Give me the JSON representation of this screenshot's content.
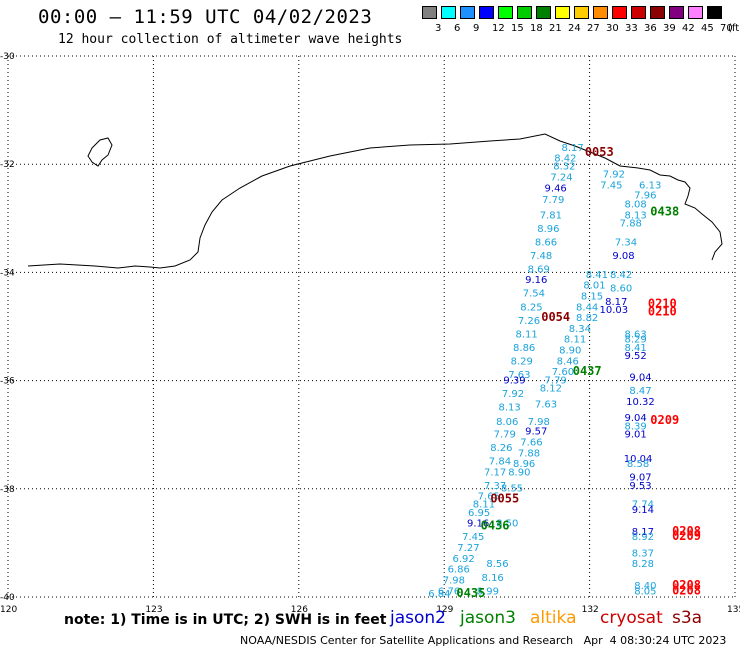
{
  "title": "00:00 – 11:59 UTC 04/02/2023",
  "subtitle": "12 hour collection of altimeter wave heights",
  "legend": {
    "unit": "(ft)",
    "colors": [
      "#808080",
      "#00ffff",
      "#1e90ff",
      "#0000ff",
      "#00ff00",
      "#00cc00",
      "#008000",
      "#ffff00",
      "#ffcc00",
      "#ff8c00",
      "#ff0000",
      "#cc0000",
      "#8b0000",
      "#800080",
      "#ff80ff",
      "#000000"
    ],
    "labels": [
      "3",
      "6",
      "9",
      "12",
      "15",
      "18",
      "21",
      "24",
      "27",
      "30",
      "33",
      "36",
      "39",
      "42",
      "45",
      "70"
    ]
  },
  "axes": {
    "y_labels": [
      "-30",
      "-32",
      "-34",
      "-36",
      "-38",
      "-40"
    ],
    "x_labels": [
      "120",
      "123",
      "126",
      "129",
      "132",
      "135"
    ]
  },
  "swh_color_map": {
    "cyan": "#1aa3dc",
    "blue": "#0000cc"
  },
  "observations": [
    {
      "v": "8.17",
      "c": "cyan",
      "lon": 131.65,
      "lat": -31.76
    },
    {
      "v": "8.42",
      "c": "cyan",
      "lon": 131.5,
      "lat": -31.95
    },
    {
      "v": "8.32",
      "c": "cyan",
      "lon": 131.48,
      "lat": -32.1
    },
    {
      "v": "7.24",
      "c": "cyan",
      "lon": 131.42,
      "lat": -32.3
    },
    {
      "v": "9.46",
      "c": "blue",
      "lon": 131.3,
      "lat": -32.5
    },
    {
      "v": "7.79",
      "c": "cyan",
      "lon": 131.25,
      "lat": -32.72
    },
    {
      "v": "7.81",
      "c": "cyan",
      "lon": 131.2,
      "lat": -33.0
    },
    {
      "v": "8.96",
      "c": "cyan",
      "lon": 131.15,
      "lat": -33.25
    },
    {
      "v": "8.66",
      "c": "cyan",
      "lon": 131.1,
      "lat": -33.5
    },
    {
      "v": "7.48",
      "c": "cyan",
      "lon": 131.0,
      "lat": -33.75
    },
    {
      "v": "8.69",
      "c": "cyan",
      "lon": 130.95,
      "lat": -34.0
    },
    {
      "v": "9.16",
      "c": "blue",
      "lon": 130.9,
      "lat": -34.2
    },
    {
      "v": "7.54",
      "c": "cyan",
      "lon": 130.85,
      "lat": -34.45
    },
    {
      "v": "8.25",
      "c": "cyan",
      "lon": 130.8,
      "lat": -34.7
    },
    {
      "v": "7.26",
      "c": "cyan",
      "lon": 130.75,
      "lat": -34.95
    },
    {
      "v": "8.11",
      "c": "cyan",
      "lon": 130.7,
      "lat": -35.2
    },
    {
      "v": "8.86",
      "c": "cyan",
      "lon": 130.65,
      "lat": -35.45
    },
    {
      "v": "8.29",
      "c": "cyan",
      "lon": 130.6,
      "lat": -35.7
    },
    {
      "v": "7.63",
      "c": "cyan",
      "lon": 130.55,
      "lat": -35.95
    },
    {
      "v": "9.39",
      "c": "blue",
      "lon": 130.45,
      "lat": -36.05
    },
    {
      "v": "7.92",
      "c": "cyan",
      "lon": 130.42,
      "lat": -36.3
    },
    {
      "v": "8.13",
      "c": "cyan",
      "lon": 130.35,
      "lat": -36.55
    },
    {
      "v": "8.06",
      "c": "cyan",
      "lon": 130.3,
      "lat": -36.82
    },
    {
      "v": "7.79",
      "c": "cyan",
      "lon": 130.25,
      "lat": -37.05
    },
    {
      "v": "8.26",
      "c": "cyan",
      "lon": 130.18,
      "lat": -37.3
    },
    {
      "v": "7.84",
      "c": "cyan",
      "lon": 130.15,
      "lat": -37.55
    },
    {
      "v": "7.17",
      "c": "cyan",
      "lon": 130.05,
      "lat": -37.75
    },
    {
      "v": "7.37",
      "c": "cyan",
      "lon": 130.05,
      "lat": -38.0
    },
    {
      "v": "7.65",
      "c": "cyan",
      "lon": 129.92,
      "lat": -38.2
    },
    {
      "v": "8.11",
      "c": "cyan",
      "lon": 129.82,
      "lat": -38.35
    },
    {
      "v": "6.95",
      "c": "cyan",
      "lon": 129.72,
      "lat": -38.5
    },
    {
      "v": "9.16",
      "c": "blue",
      "lon": 129.7,
      "lat": -38.7
    },
    {
      "v": "7.45",
      "c": "cyan",
      "lon": 129.6,
      "lat": -38.95
    },
    {
      "v": "7.27",
      "c": "cyan",
      "lon": 129.5,
      "lat": -39.15
    },
    {
      "v": "6.92",
      "c": "cyan",
      "lon": 129.4,
      "lat": -39.35
    },
    {
      "v": "6.86",
      "c": "cyan",
      "lon": 129.3,
      "lat": -39.55
    },
    {
      "v": "7.98",
      "c": "cyan",
      "lon": 129.2,
      "lat": -39.75
    },
    {
      "v": "6.76",
      "c": "cyan",
      "lon": 129.1,
      "lat": -39.95
    },
    {
      "v": "6.84",
      "c": "cyan",
      "lon": 128.9,
      "lat": -40.0
    },
    {
      "v": "7.92",
      "c": "cyan",
      "lon": 132.5,
      "lat": -32.25
    },
    {
      "v": "7.45",
      "c": "cyan",
      "lon": 132.45,
      "lat": -32.45
    },
    {
      "v": "6.13",
      "c": "cyan",
      "lon": 133.25,
      "lat": -32.45
    },
    {
      "v": "7.96",
      "c": "cyan",
      "lon": 133.15,
      "lat": -32.63
    },
    {
      "v": "8.08",
      "c": "cyan",
      "lon": 132.95,
      "lat": -32.8
    },
    {
      "v": "8.13",
      "c": "cyan",
      "lon": 132.95,
      "lat": -33.0
    },
    {
      "v": "7.88",
      "c": "cyan",
      "lon": 132.85,
      "lat": -33.15
    },
    {
      "v": "7.34",
      "c": "cyan",
      "lon": 132.75,
      "lat": -33.5
    },
    {
      "v": "9.08",
      "c": "blue",
      "lon": 132.7,
      "lat": -33.75
    },
    {
      "v": "8.42",
      "c": "cyan",
      "lon": 132.65,
      "lat": -34.1
    },
    {
      "v": "8.60",
      "c": "cyan",
      "lon": 132.65,
      "lat": -34.35
    },
    {
      "v": "8.17",
      "c": "blue",
      "lon": 132.55,
      "lat": -34.6
    },
    {
      "v": "10.03",
      "c": "blue",
      "lon": 132.5,
      "lat": -34.75
    },
    {
      "v": "8.41",
      "c": "cyan",
      "lon": 132.15,
      "lat": -34.1
    },
    {
      "v": "8.01",
      "c": "cyan",
      "lon": 132.1,
      "lat": -34.3
    },
    {
      "v": "8.15",
      "c": "cyan",
      "lon": 132.05,
      "lat": -34.5
    },
    {
      "v": "8.44",
      "c": "cyan",
      "lon": 131.95,
      "lat": -34.7
    },
    {
      "v": "8.82",
      "c": "cyan",
      "lon": 131.95,
      "lat": -34.9
    },
    {
      "v": "8.34",
      "c": "cyan",
      "lon": 131.8,
      "lat": -35.1
    },
    {
      "v": "8.11",
      "c": "cyan",
      "lon": 131.7,
      "lat": -35.3
    },
    {
      "v": "8.90",
      "c": "cyan",
      "lon": 131.6,
      "lat": -35.5
    },
    {
      "v": "8.46",
      "c": "cyan",
      "lon": 131.55,
      "lat": -35.7
    },
    {
      "v": "7.60",
      "c": "cyan",
      "lon": 131.45,
      "lat": -35.9
    },
    {
      "v": "7.79",
      "c": "cyan",
      "lon": 131.3,
      "lat": -36.05
    },
    {
      "v": "8.12",
      "c": "cyan",
      "lon": 131.2,
      "lat": -36.2
    },
    {
      "v": "7.63",
      "c": "cyan",
      "lon": 131.1,
      "lat": -36.5
    },
    {
      "v": "7.98",
      "c": "cyan",
      "lon": 130.95,
      "lat": -36.82
    },
    {
      "v": "9.57",
      "c": "blue",
      "lon": 130.9,
      "lat": -37.0
    },
    {
      "v": "7.66",
      "c": "cyan",
      "lon": 130.8,
      "lat": -37.2
    },
    {
      "v": "7.88",
      "c": "cyan",
      "lon": 130.75,
      "lat": -37.4
    },
    {
      "v": "8.96",
      "c": "cyan",
      "lon": 130.65,
      "lat": -37.6
    },
    {
      "v": "8.90",
      "c": "cyan",
      "lon": 130.55,
      "lat": -37.75
    },
    {
      "v": "8.55",
      "c": "cyan",
      "lon": 130.4,
      "lat": -38.05
    },
    {
      "v": "8.50",
      "c": "cyan",
      "lon": 130.3,
      "lat": -38.7
    },
    {
      "v": "8.56",
      "c": "cyan",
      "lon": 130.1,
      "lat": -39.45
    },
    {
      "v": "8.16",
      "c": "cyan",
      "lon": 130.0,
      "lat": -39.7
    },
    {
      "v": "8.99",
      "c": "cyan",
      "lon": 129.9,
      "lat": -39.95
    },
    {
      "v": "8.63",
      "c": "cyan",
      "lon": 132.95,
      "lat": -35.2
    },
    {
      "v": "8.29",
      "c": "cyan",
      "lon": 132.95,
      "lat": -35.3
    },
    {
      "v": "8.41",
      "c": "cyan",
      "lon": 132.95,
      "lat": -35.45
    },
    {
      "v": "9.52",
      "c": "blue",
      "lon": 132.95,
      "lat": -35.6
    },
    {
      "v": "9.04",
      "c": "blue",
      "lon": 133.05,
      "lat": -36.0
    },
    {
      "v": "8.47",
      "c": "cyan",
      "lon": 133.05,
      "lat": -36.25
    },
    {
      "v": "10.32",
      "c": "blue",
      "lon": 133.05,
      "lat": -36.45
    },
    {
      "v": "9.04",
      "c": "blue",
      "lon": 132.95,
      "lat": -36.75
    },
    {
      "v": "8.39",
      "c": "cyan",
      "lon": 132.95,
      "lat": -36.9
    },
    {
      "v": "9.01",
      "c": "blue",
      "lon": 132.95,
      "lat": -37.05
    },
    {
      "v": "10.04",
      "c": "blue",
      "lon": 133.0,
      "lat": -37.5
    },
    {
      "v": "8.58",
      "c": "cyan",
      "lon": 133.0,
      "lat": -37.6
    },
    {
      "v": "9.07",
      "c": "blue",
      "lon": 133.05,
      "lat": -37.85
    },
    {
      "v": "9.53",
      "c": "blue",
      "lon": 133.05,
      "lat": -38.0
    },
    {
      "v": "7.74",
      "c": "cyan",
      "lon": 133.1,
      "lat": -38.35
    },
    {
      "v": "9.14",
      "c": "blue",
      "lon": 133.1,
      "lat": -38.45
    },
    {
      "v": "8.17",
      "c": "blue",
      "lon": 133.1,
      "lat": -38.85
    },
    {
      "v": "8.92",
      "c": "cyan",
      "lon": 133.1,
      "lat": -38.95
    },
    {
      "v": "8.37",
      "c": "cyan",
      "lon": 133.1,
      "lat": -39.25
    },
    {
      "v": "8.28",
      "c": "cyan",
      "lon": 133.1,
      "lat": -39.45
    },
    {
      "v": "8.40",
      "c": "cyan",
      "lon": 133.15,
      "lat": -39.85
    },
    {
      "v": "8.05",
      "c": "cyan",
      "lon": 133.15,
      "lat": -39.95
    }
  ],
  "pass_labels": [
    {
      "text": "0053",
      "color": "#8b0000",
      "lon": 132.2,
      "lat": -31.85
    },
    {
      "text": "0438",
      "color": "#008000",
      "lon": 133.55,
      "lat": -32.95
    },
    {
      "text": "0054",
      "color": "#8b0000",
      "lon": 131.3,
      "lat": -34.9
    },
    {
      "text": "0210",
      "color": "#ff0000",
      "lon": 133.5,
      "lat": -34.65
    },
    {
      "text": "0210",
      "color": "#ff0000",
      "lon": 133.5,
      "lat": -34.8
    },
    {
      "text": "0437",
      "color": "#008000",
      "lon": 131.95,
      "lat": -35.9
    },
    {
      "text": "0209",
      "color": "#ff0000",
      "lon": 133.55,
      "lat": -36.8
    },
    {
      "text": "0055",
      "color": "#8b0000",
      "lon": 130.25,
      "lat": -38.25
    },
    {
      "text": "0436",
      "color": "#008000",
      "lon": 130.05,
      "lat": -38.75
    },
    {
      "text": "0208",
      "color": "#ff0000",
      "lon": 134.0,
      "lat": -38.85
    },
    {
      "text": "0209",
      "color": "#ff0000",
      "lon": 134.0,
      "lat": -38.95
    },
    {
      "text": "0208",
      "color": "#ff0000",
      "lon": 134.0,
      "lat": -39.85
    },
    {
      "text": "0208",
      "color": "#ff0000",
      "lon": 134.0,
      "lat": -39.95
    },
    {
      "text": "0435",
      "color": "#008000",
      "lon": 129.55,
      "lat": -40.0
    }
  ],
  "note": "note: 1) Time is in UTC; 2) SWH is in feet",
  "satellites": [
    {
      "name": "jason2",
      "color": "#0000cc"
    },
    {
      "name": "jason3",
      "color": "#008000"
    },
    {
      "name": "altika",
      "color": "#ff9900"
    },
    {
      "name": "cryosat",
      "color": "#cc0000"
    },
    {
      "name": "s3a",
      "color": "#8b0000"
    }
  ],
  "footer": "NOAA/NESDIS Center for Satellite Applications and Research   Apr  4 08:30:24 UTC 2023"
}
